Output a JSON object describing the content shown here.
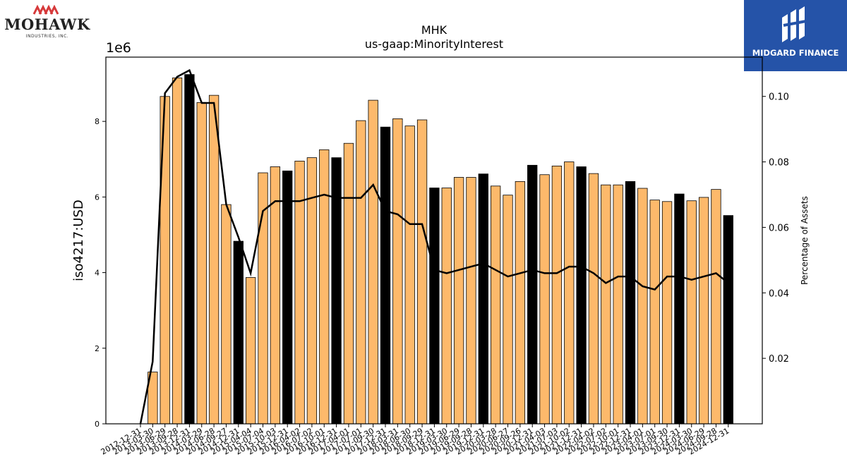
{
  "header": {
    "left_logo": {
      "name": "MOHAWK",
      "subtitle": "INDUSTRIES, INC."
    },
    "right_logo": {
      "name": "MIDGARD FINANCE"
    }
  },
  "chart_data": {
    "type": "bar",
    "title": "MHK",
    "subtitle": "us-gaap:MinorityInterest",
    "ylabel": "iso4217:USD",
    "y2label": "Percentage of Assets",
    "y_offset_label": "1e6",
    "ylim": [
      0,
      9700000
    ],
    "y2lim": [
      0,
      0.112
    ],
    "yticks": [
      0,
      2,
      4,
      6,
      8
    ],
    "y2ticks": [
      "0.02",
      "0.04",
      "0.06",
      "0.08",
      "0.10"
    ],
    "colors": {
      "bar": "#fdb96b",
      "bar_q4": "#000000",
      "line": "#000000"
    },
    "categories": [
      "2012-12-31",
      "2013-03-30",
      "2013-06-29",
      "2013-09-28",
      "2013-12-31",
      "2014-03-29",
      "2014-06-28",
      "2014-09-27",
      "2014-12-31",
      "2015-04-04",
      "2015-07-04",
      "2015-10-03",
      "2015-12-31",
      "2016-04-02",
      "2016-07-02",
      "2016-10-01",
      "2016-12-31",
      "2017-04-01",
      "2017-07-01",
      "2017-09-30",
      "2017-12-31",
      "2018-03-31",
      "2018-06-30",
      "2018-09-29",
      "2018-12-31",
      "2019-03-30",
      "2019-06-29",
      "2019-09-28",
      "2019-12-31",
      "2020-03-28",
      "2020-06-27",
      "2020-09-26",
      "2020-12-31",
      "2021-04-03",
      "2021-07-03",
      "2021-10-02",
      "2021-12-31",
      "2022-04-02",
      "2022-07-02",
      "2022-10-01",
      "2022-12-31",
      "2023-04-01",
      "2023-07-01",
      "2023-09-30",
      "2023-12-31",
      "2024-03-30",
      "2024-06-29",
      "2024-09-28",
      "2024-12-31"
    ],
    "values": [
      0,
      1370000,
      8660000,
      9150000,
      9240000,
      8500000,
      8690000,
      5800000,
      4830000,
      3870000,
      6640000,
      6800000,
      6690000,
      6950000,
      7040000,
      7250000,
      7040000,
      7420000,
      8020000,
      8560000,
      7850000,
      8070000,
      7880000,
      8040000,
      6240000,
      6240000,
      6520000,
      6520000,
      6610000,
      6290000,
      6050000,
      6410000,
      6840000,
      6590000,
      6820000,
      6930000,
      6800000,
      6620000,
      6320000,
      6320000,
      6410000,
      6230000,
      5920000,
      5880000,
      6080000,
      5900000,
      5990000,
      6200000,
      5510000
    ],
    "highlight": [
      false,
      false,
      false,
      false,
      true,
      false,
      false,
      false,
      true,
      false,
      false,
      false,
      true,
      false,
      false,
      false,
      true,
      false,
      false,
      false,
      true,
      false,
      false,
      false,
      true,
      false,
      false,
      false,
      true,
      false,
      false,
      false,
      true,
      false,
      false,
      false,
      true,
      false,
      false,
      false,
      true,
      false,
      false,
      false,
      true,
      false,
      false,
      false,
      true
    ],
    "series": [
      {
        "type": "line",
        "values": [
          0.0,
          0.019,
          0.101,
          0.106,
          0.108,
          0.098,
          0.098,
          0.067,
          0.057,
          0.046,
          0.065,
          0.068,
          0.068,
          0.068,
          0.069,
          0.07,
          0.069,
          0.069,
          0.069,
          0.073,
          0.065,
          0.064,
          0.061,
          0.061,
          0.047,
          0.046,
          0.047,
          0.048,
          0.049,
          0.047,
          0.045,
          0.046,
          0.047,
          0.046,
          0.046,
          0.048,
          0.048,
          0.046,
          0.043,
          0.045,
          0.045,
          0.042,
          0.041,
          0.045,
          0.045,
          0.044,
          0.045,
          0.046,
          0.043
        ]
      }
    ]
  }
}
